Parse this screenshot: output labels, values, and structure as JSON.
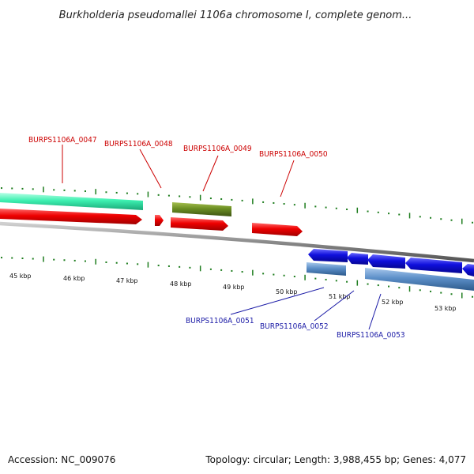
{
  "title": "Burkholderia pseudomallei 1106a chromosome I, complete genom...",
  "footer": {
    "accession": "Accession: NC_009076",
    "summary": "Topology: circular; Length: 3,988,455 bp; Genes: 4,077"
  },
  "colors": {
    "backbone": "#8a8a8a",
    "forward_cds": "#ee0000",
    "reverse_cds": "#1010dd",
    "forward_gene": "#3cf0b0",
    "reverse_gene": "#5c8fc8",
    "rna_gene": "#6b8e23",
    "tick": "#1e7d1e",
    "label_forward": "#cc0000",
    "label_reverse": "#1a1aa6"
  },
  "scale": {
    "unit": "kbp",
    "ticks": [
      "45 kbp",
      "46 kbp",
      "47 kbp",
      "48 kbp",
      "49 kbp",
      "50 kbp",
      "51 kbp",
      "52 kbp",
      "53 kbp"
    ]
  },
  "genes": [
    {
      "name": "BURPS1106A_0047",
      "strand": "forward"
    },
    {
      "name": "BURPS1106A_0048",
      "strand": "forward"
    },
    {
      "name": "BURPS1106A_0049",
      "strand": "forward"
    },
    {
      "name": "BURPS1106A_0050",
      "strand": "forward"
    },
    {
      "name": "BURPS1106A_0051",
      "strand": "reverse"
    },
    {
      "name": "BURPS1106A_0052",
      "strand": "reverse"
    },
    {
      "name": "BURPS1106A_0053",
      "strand": "reverse"
    }
  ]
}
